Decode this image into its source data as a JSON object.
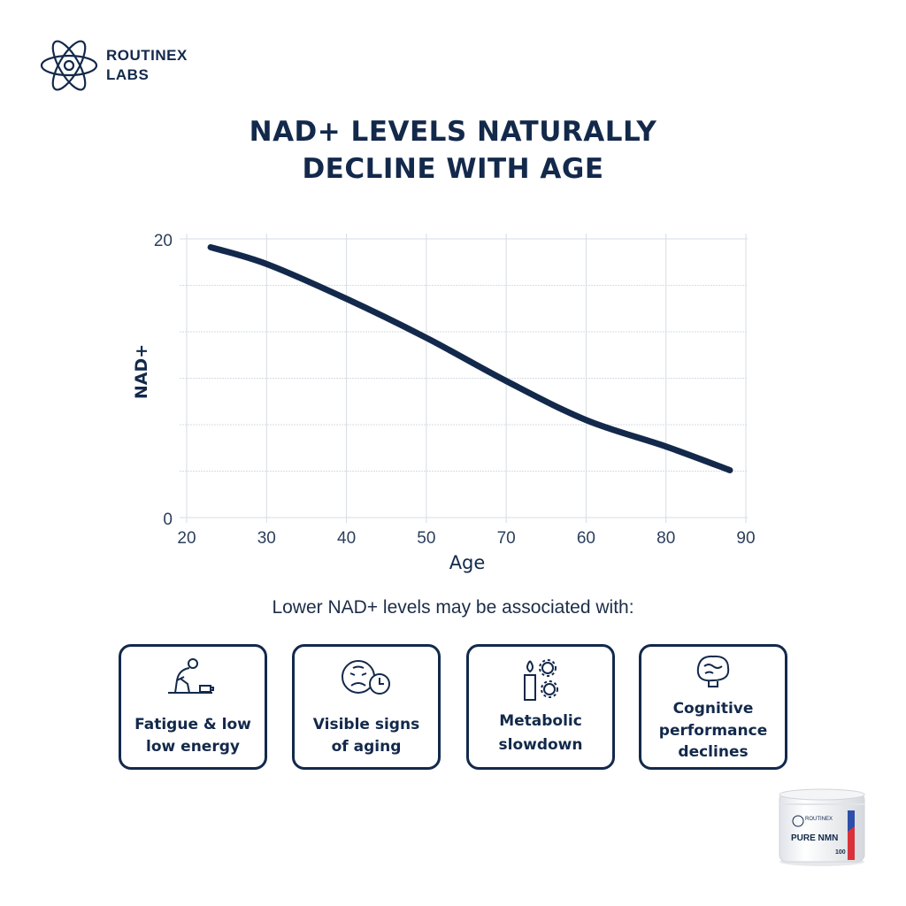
{
  "brand": {
    "line1": "ROUTINEX",
    "line2": "LABS"
  },
  "title": {
    "line1": "NAD+ LEVELS NATURALLY",
    "line2": "DECLINE WITH AGE"
  },
  "chart_data": {
    "type": "line",
    "title": "NAD+ LEVELS NATURALLY DECLINE WITH AGE",
    "xlabel": "Age",
    "ylabel": "NAD+",
    "x_tick_labels": [
      "20",
      "30",
      "40",
      "50",
      "70",
      "60",
      "80",
      "90"
    ],
    "y_tick_labels": [
      "20",
      "0"
    ],
    "xlim": [
      20,
      90
    ],
    "ylim": [
      0,
      20
    ],
    "grid": true,
    "line_color": "#13294b",
    "series": [
      {
        "x": [
          23,
          30,
          40,
          50,
          60,
          70,
          80,
          88
        ],
        "y": [
          19.4,
          18.2,
          15.7,
          12.9,
          9.8,
          7.0,
          5.1,
          3.4
        ]
      }
    ]
  },
  "subtitle": "Lower NAD+ levels may be associated with:",
  "cards": [
    {
      "icon": "fatigue-person-battery-icon",
      "line1": "Fatigue & low",
      "line2": "low energy"
    },
    {
      "icon": "sad-face-clock-icon",
      "line1": "Visible signs",
      "line2": "of aging"
    },
    {
      "icon": "flame-gears-icon",
      "line1": "Metabolic",
      "line2": "slowdown"
    },
    {
      "icon": "brain-lightbulb-icon",
      "line1": "Cognitive",
      "line2": "performance",
      "line3": "declines"
    }
  ],
  "product": {
    "brand": "ROUTINEX LABS",
    "name": "PURE NMN",
    "count": "100"
  }
}
